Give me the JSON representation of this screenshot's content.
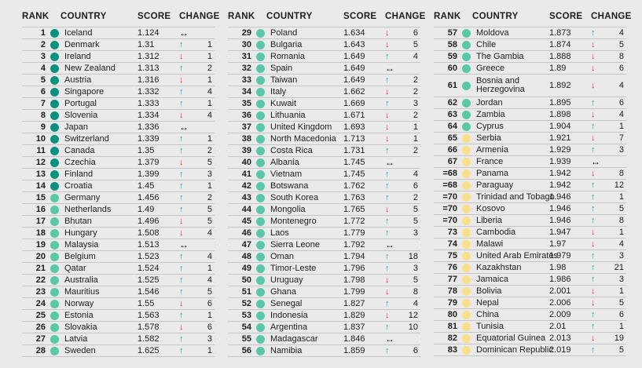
{
  "headers": {
    "rank": "RANK",
    "country": "COUNTRY",
    "score": "SCORE",
    "change": "CHANGE"
  },
  "icons": {
    "up": "↑",
    "down": "↓",
    "same": "↔"
  },
  "colors": {
    "band_very_high": "#0c9080",
    "band_high": "#5ac7a6",
    "band_medium": "#f7df8b",
    "up_arrow": "#2b9c8e",
    "down_arrow": "#ca3a2f",
    "neutral_arrow": "#121212",
    "background": "#eaeaea",
    "separator": "#c6c6c6",
    "text": "#1c1c1c"
  },
  "columns": [
    {
      "rows": [
        {
          "rank": "1",
          "country": "Iceland",
          "score": "1.124",
          "band": "very_high",
          "change_dir": "same",
          "change_val": ""
        },
        {
          "rank": "2",
          "country": "Denmark",
          "score": "1.31",
          "band": "very_high",
          "change_dir": "up",
          "change_val": "1"
        },
        {
          "rank": "3",
          "country": "Ireland",
          "score": "1.312",
          "band": "very_high",
          "change_dir": "down",
          "change_val": "1"
        },
        {
          "rank": "4",
          "country": "New Zealand",
          "score": "1.313",
          "band": "very_high",
          "change_dir": "up",
          "change_val": "2"
        },
        {
          "rank": "5",
          "country": "Austria",
          "score": "1.316",
          "band": "very_high",
          "change_dir": "down",
          "change_val": "1"
        },
        {
          "rank": "6",
          "country": "Singapore",
          "score": "1.332",
          "band": "very_high",
          "change_dir": "up",
          "change_val": "4"
        },
        {
          "rank": "7",
          "country": "Portugal",
          "score": "1.333",
          "band": "very_high",
          "change_dir": "up",
          "change_val": "1"
        },
        {
          "rank": "8",
          "country": "Slovenia",
          "score": "1.334",
          "band": "very_high",
          "change_dir": "down",
          "change_val": "4"
        },
        {
          "rank": "9",
          "country": "Japan",
          "score": "1.336",
          "band": "very_high",
          "change_dir": "same",
          "change_val": ""
        },
        {
          "rank": "10",
          "country": "Switzerland",
          "score": "1.339",
          "band": "very_high",
          "change_dir": "up",
          "change_val": "1"
        },
        {
          "rank": "11",
          "country": "Canada",
          "score": "1.35",
          "band": "very_high",
          "change_dir": "up",
          "change_val": "2"
        },
        {
          "rank": "12",
          "country": "Czechia",
          "score": "1.379",
          "band": "very_high",
          "change_dir": "down",
          "change_val": "5"
        },
        {
          "rank": "13",
          "country": "Finland",
          "score": "1.399",
          "band": "very_high",
          "change_dir": "up",
          "change_val": "3"
        },
        {
          "rank": "14",
          "country": "Croatia",
          "score": "1.45",
          "band": "very_high",
          "change_dir": "up",
          "change_val": "1"
        },
        {
          "rank": "15",
          "country": "Germany",
          "score": "1.456",
          "band": "high",
          "change_dir": "up",
          "change_val": "2"
        },
        {
          "rank": "16",
          "country": "Netherlands",
          "score": "1.49",
          "band": "high",
          "change_dir": "up",
          "change_val": "5"
        },
        {
          "rank": "17",
          "country": "Bhutan",
          "score": "1.496",
          "band": "high",
          "change_dir": "down",
          "change_val": "5"
        },
        {
          "rank": "18",
          "country": "Hungary",
          "score": "1.508",
          "band": "high",
          "change_dir": "down",
          "change_val": "4"
        },
        {
          "rank": "19",
          "country": "Malaysia",
          "score": "1.513",
          "band": "high",
          "change_dir": "same",
          "change_val": ""
        },
        {
          "rank": "20",
          "country": "Belgium",
          "score": "1.523",
          "band": "high",
          "change_dir": "up",
          "change_val": "4"
        },
        {
          "rank": "21",
          "country": "Qatar",
          "score": "1.524",
          "band": "high",
          "change_dir": "up",
          "change_val": "1"
        },
        {
          "rank": "22",
          "country": "Australia",
          "score": "1.525",
          "band": "high",
          "change_dir": "up",
          "change_val": "4"
        },
        {
          "rank": "23",
          "country": "Mauritius",
          "score": "1.546",
          "band": "high",
          "change_dir": "up",
          "change_val": "5"
        },
        {
          "rank": "24",
          "country": "Norway",
          "score": "1.55",
          "band": "high",
          "change_dir": "down",
          "change_val": "6"
        },
        {
          "rank": "25",
          "country": "Estonia",
          "score": "1.563",
          "band": "high",
          "change_dir": "up",
          "change_val": "1"
        },
        {
          "rank": "26",
          "country": "Slovakia",
          "score": "1.578",
          "band": "high",
          "change_dir": "down",
          "change_val": "6"
        },
        {
          "rank": "27",
          "country": "Latvia",
          "score": "1.582",
          "band": "high",
          "change_dir": "up",
          "change_val": "3"
        },
        {
          "rank": "28",
          "country": "Sweden",
          "score": "1.625",
          "band": "high",
          "change_dir": "up",
          "change_val": "1"
        }
      ]
    },
    {
      "rows": [
        {
          "rank": "29",
          "country": "Poland",
          "score": "1.634",
          "band": "high",
          "change_dir": "down",
          "change_val": "6"
        },
        {
          "rank": "30",
          "country": "Bulgaria",
          "score": "1.643",
          "band": "high",
          "change_dir": "down",
          "change_val": "5"
        },
        {
          "rank": "31",
          "country": "Romania",
          "score": "1.649",
          "band": "high",
          "change_dir": "up",
          "change_val": "4"
        },
        {
          "rank": "32",
          "country": "Spain",
          "score": "1.649",
          "band": "high",
          "change_dir": "same",
          "change_val": ""
        },
        {
          "rank": "33",
          "country": "Taiwan",
          "score": "1.649",
          "band": "high",
          "change_dir": "up",
          "change_val": "2"
        },
        {
          "rank": "34",
          "country": "Italy",
          "score": "1.662",
          "band": "high",
          "change_dir": "down",
          "change_val": "2"
        },
        {
          "rank": "35",
          "country": "Kuwait",
          "score": "1.669",
          "band": "high",
          "change_dir": "up",
          "change_val": "3"
        },
        {
          "rank": "36",
          "country": "Lithuania",
          "score": "1.671",
          "band": "high",
          "change_dir": "down",
          "change_val": "2"
        },
        {
          "rank": "37",
          "country": "United Kingdom",
          "score": "1.693",
          "band": "high",
          "change_dir": "down",
          "change_val": "1"
        },
        {
          "rank": "38",
          "country": "North Macedonia",
          "score": "1.713",
          "band": "high",
          "change_dir": "down",
          "change_val": "1"
        },
        {
          "rank": "39",
          "country": "Costa Rica",
          "score": "1.731",
          "band": "high",
          "change_dir": "up",
          "change_val": "2"
        },
        {
          "rank": "40",
          "country": "Albania",
          "score": "1.745",
          "band": "high",
          "change_dir": "same",
          "change_val": ""
        },
        {
          "rank": "41",
          "country": "Vietnam",
          "score": "1.745",
          "band": "high",
          "change_dir": "up",
          "change_val": "4"
        },
        {
          "rank": "42",
          "country": "Botswana",
          "score": "1.762",
          "band": "high",
          "change_dir": "up",
          "change_val": "6"
        },
        {
          "rank": "43",
          "country": "South Korea",
          "score": "1.763",
          "band": "high",
          "change_dir": "up",
          "change_val": "2"
        },
        {
          "rank": "44",
          "country": "Mongolia",
          "score": "1.765",
          "band": "high",
          "change_dir": "down",
          "change_val": "5"
        },
        {
          "rank": "45",
          "country": "Montenegro",
          "score": "1.772",
          "band": "high",
          "change_dir": "up",
          "change_val": "5"
        },
        {
          "rank": "46",
          "country": "Laos",
          "score": "1.779",
          "band": "high",
          "change_dir": "up",
          "change_val": "3"
        },
        {
          "rank": "47",
          "country": "Sierra Leone",
          "score": "1.792",
          "band": "high",
          "change_dir": "same",
          "change_val": ""
        },
        {
          "rank": "48",
          "country": "Oman",
          "score": "1.794",
          "band": "high",
          "change_dir": "up",
          "change_val": "18"
        },
        {
          "rank": "49",
          "country": "Timor-Leste",
          "score": "1.796",
          "band": "high",
          "change_dir": "up",
          "change_val": "3"
        },
        {
          "rank": "50",
          "country": "Uruguay",
          "score": "1.798",
          "band": "high",
          "change_dir": "down",
          "change_val": "5"
        },
        {
          "rank": "51",
          "country": "Ghana",
          "score": "1.799",
          "band": "high",
          "change_dir": "down",
          "change_val": "8"
        },
        {
          "rank": "52",
          "country": "Senegal",
          "score": "1.827",
          "band": "high",
          "change_dir": "up",
          "change_val": "4"
        },
        {
          "rank": "53",
          "country": "Indonesia",
          "score": "1.829",
          "band": "high",
          "change_dir": "down",
          "change_val": "12"
        },
        {
          "rank": "54",
          "country": "Argentina",
          "score": "1.837",
          "band": "high",
          "change_dir": "up",
          "change_val": "10"
        },
        {
          "rank": "55",
          "country": "Madagascar",
          "score": "1.846",
          "band": "high",
          "change_dir": "same",
          "change_val": ""
        },
        {
          "rank": "56",
          "country": "Namibia",
          "score": "1.859",
          "band": "high",
          "change_dir": "up",
          "change_val": "6"
        }
      ]
    },
    {
      "rows": [
        {
          "rank": "57",
          "country": "Moldova",
          "score": "1.873",
          "band": "high",
          "change_dir": "up",
          "change_val": "4"
        },
        {
          "rank": "58",
          "country": "Chile",
          "score": "1.874",
          "band": "high",
          "change_dir": "down",
          "change_val": "5"
        },
        {
          "rank": "59",
          "country": "The Gambia",
          "score": "1.888",
          "band": "high",
          "change_dir": "down",
          "change_val": "8"
        },
        {
          "rank": "60",
          "country": "Greece",
          "score": "1.89",
          "band": "high",
          "change_dir": "down",
          "change_val": "6"
        },
        {
          "rank": "61",
          "country": "Bosnia and Herzegovina",
          "score": "1.892",
          "band": "high",
          "change_dir": "down",
          "change_val": "4"
        },
        {
          "rank": "62",
          "country": "Jordan",
          "score": "1.895",
          "band": "high",
          "change_dir": "up",
          "change_val": "6"
        },
        {
          "rank": "63",
          "country": "Zambia",
          "score": "1.898",
          "band": "high",
          "change_dir": "down",
          "change_val": "4"
        },
        {
          "rank": "64",
          "country": "Cyprus",
          "score": "1.904",
          "band": "high",
          "change_dir": "up",
          "change_val": "1"
        },
        {
          "rank": "65",
          "country": "Serbia",
          "score": "1.921",
          "band": "medium",
          "change_dir": "down",
          "change_val": "7"
        },
        {
          "rank": "66",
          "country": "Armenia",
          "score": "1.929",
          "band": "medium",
          "change_dir": "up",
          "change_val": "3"
        },
        {
          "rank": "67",
          "country": "France",
          "score": "1.939",
          "band": "medium",
          "change_dir": "same",
          "change_val": ""
        },
        {
          "rank": "=68",
          "country": "Panama",
          "score": "1.942",
          "band": "medium",
          "change_dir": "down",
          "change_val": "8"
        },
        {
          "rank": "=68",
          "country": "Paraguay",
          "score": "1.942",
          "band": "medium",
          "change_dir": "up",
          "change_val": "12"
        },
        {
          "rank": "=70",
          "country": "Trinidad and Tobago",
          "score": "1.946",
          "band": "medium",
          "change_dir": "up",
          "change_val": "1"
        },
        {
          "rank": "=70",
          "country": "Kosovo",
          "score": "1.946",
          "band": "medium",
          "change_dir": "up",
          "change_val": "5"
        },
        {
          "rank": "=70",
          "country": "Liberia",
          "score": "1.946",
          "band": "medium",
          "change_dir": "up",
          "change_val": "8"
        },
        {
          "rank": "73",
          "country": "Cambodia",
          "score": "1.947",
          "band": "medium",
          "change_dir": "down",
          "change_val": "1"
        },
        {
          "rank": "74",
          "country": "Malawi",
          "score": "1.97",
          "band": "medium",
          "change_dir": "down",
          "change_val": "4"
        },
        {
          "rank": "75",
          "country": "United Arab Emirates",
          "score": "1.979",
          "band": "medium",
          "change_dir": "up",
          "change_val": "3"
        },
        {
          "rank": "76",
          "country": "Kazakhstan",
          "score": "1.98",
          "band": "medium",
          "change_dir": "up",
          "change_val": "21"
        },
        {
          "rank": "77",
          "country": "Jamaica",
          "score": "1.986",
          "band": "medium",
          "change_dir": "up",
          "change_val": "3"
        },
        {
          "rank": "78",
          "country": "Bolivia",
          "score": "2.001",
          "band": "medium",
          "change_dir": "down",
          "change_val": "1"
        },
        {
          "rank": "79",
          "country": "Nepal",
          "score": "2.006",
          "band": "medium",
          "change_dir": "down",
          "change_val": "5"
        },
        {
          "rank": "80",
          "country": "China",
          "score": "2.009",
          "band": "medium",
          "change_dir": "up",
          "change_val": "6"
        },
        {
          "rank": "81",
          "country": "Tunisia",
          "score": "2.01",
          "band": "medium",
          "change_dir": "up",
          "change_val": "1"
        },
        {
          "rank": "82",
          "country": "Equatorial Guinea",
          "score": "2.013",
          "band": "medium",
          "change_dir": "down",
          "change_val": "19"
        },
        {
          "rank": "83",
          "country": "Dominican Republic",
          "score": "2.019",
          "band": "medium",
          "change_dir": "up",
          "change_val": "5"
        }
      ]
    }
  ]
}
